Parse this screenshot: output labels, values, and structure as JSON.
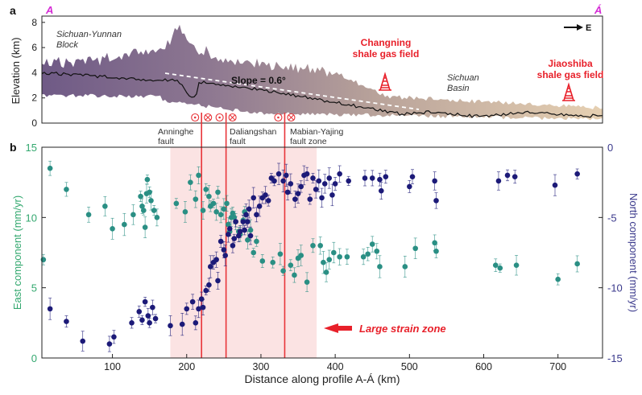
{
  "colors": {
    "east": "#2a8f84",
    "north": "#1c1a78",
    "fault": "#e8353a",
    "strain_zone": "#fbe3e3",
    "profile_letter": "#d52bd5",
    "gas_field": "#e8202a",
    "axis_east": "#33a86f",
    "axis_north": "#3b3a8c"
  },
  "panel_a": {
    "label": "a",
    "left_letter": "A",
    "right_letter": "Á",
    "direction": "E",
    "ylabel": "Elevation (km)",
    "yticks": [
      "0",
      "2",
      "4",
      "6",
      "8"
    ],
    "block_label_line1": "Sichuan-Yunnan",
    "block_label_line2": "Block",
    "basin_label_line1": "Sichuan",
    "basin_label_line2": "Basin",
    "slope_label": "Slope = 0.6°",
    "gas_field_1_line1": "Changning",
    "gas_field_1_line2": "shale gas field",
    "gas_field_2_line1": "Jiaoshiba",
    "gas_field_2_line2": "shale gas field"
  },
  "faults": [
    {
      "name_line1": "Anninghe",
      "name_line2": "fault",
      "distance_km": 220
    },
    {
      "name_line1": "Daliangshan",
      "name_line2": "fault",
      "distance_km": 253
    },
    {
      "name_line1": "Mabian-Yajing",
      "name_line2": "fault zone",
      "distance_km": 332
    }
  ],
  "chart_data": {
    "type": "scatter",
    "panel_label": "b",
    "xlabel": "Distance along profile A-Á (km)",
    "ylabel_left": "East component (mm/yr)",
    "ylabel_right": "North component (mm/yr)",
    "xlim": [
      5,
      760
    ],
    "xticks": [
      100,
      200,
      300,
      400,
      500,
      600,
      700
    ],
    "ylim_left": [
      0,
      15
    ],
    "yticks_left": [
      0,
      5,
      10,
      15
    ],
    "ylim_right": [
      -15,
      0
    ],
    "yticks_right": [
      -15,
      -10,
      -5,
      0
    ],
    "strain_zone_km": [
      178,
      375
    ],
    "strain_zone_label": "Large strain zone",
    "series": [
      {
        "name": "East component",
        "axis": "left",
        "points": [
          [
            7,
            7.0
          ],
          [
            16,
            13.5
          ],
          [
            38,
            12.0
          ],
          [
            68,
            10.2
          ],
          [
            90,
            10.8
          ],
          [
            100,
            9.2
          ],
          [
            116,
            9.5
          ],
          [
            128,
            10.2
          ],
          [
            138,
            11.5
          ],
          [
            140,
            10.8
          ],
          [
            142,
            10.5
          ],
          [
            144,
            9.3
          ],
          [
            146,
            11.7
          ],
          [
            147,
            12.7
          ],
          [
            150,
            11.8
          ],
          [
            152,
            11.2
          ],
          [
            156,
            10.5
          ],
          [
            160,
            10.0
          ],
          [
            186,
            11.0
          ],
          [
            198,
            10.4
          ],
          [
            205,
            12.5
          ],
          [
            212,
            11.3
          ],
          [
            216,
            13.0
          ],
          [
            222,
            10.5
          ],
          [
            226,
            12.0
          ],
          [
            230,
            11.5
          ],
          [
            232,
            10.8
          ],
          [
            236,
            11.0
          ],
          [
            240,
            10.4
          ],
          [
            242,
            11.8
          ],
          [
            246,
            10.2
          ],
          [
            250,
            10.6
          ],
          [
            254,
            11.0
          ],
          [
            256,
            9.5
          ],
          [
            258,
            9.0
          ],
          [
            260,
            10.0
          ],
          [
            262,
            10.3
          ],
          [
            264,
            10.0
          ],
          [
            266,
            9.7
          ],
          [
            270,
            9.0
          ],
          [
            272,
            8.8
          ],
          [
            276,
            9.8
          ],
          [
            278,
            10.4
          ],
          [
            282,
            8.4
          ],
          [
            286,
            9.1
          ],
          [
            290,
            7.5
          ],
          [
            294,
            8.3
          ],
          [
            302,
            6.9
          ],
          [
            316,
            6.8
          ],
          [
            326,
            7.4
          ],
          [
            330,
            6.2
          ],
          [
            340,
            6.6
          ],
          [
            345,
            5.9
          ],
          [
            350,
            7.1
          ],
          [
            354,
            7.3
          ],
          [
            362,
            5.4
          ],
          [
            370,
            8.0
          ],
          [
            380,
            8.0
          ],
          [
            384,
            6.8
          ],
          [
            388,
            6.1
          ],
          [
            392,
            7.0
          ],
          [
            398,
            7.5
          ],
          [
            406,
            7.2
          ],
          [
            416,
            7.2
          ],
          [
            438,
            7.2
          ],
          [
            444,
            7.4
          ],
          [
            450,
            8.1
          ],
          [
            456,
            7.6
          ],
          [
            460,
            6.5
          ],
          [
            494,
            6.5
          ],
          [
            508,
            7.8
          ],
          [
            534,
            8.2
          ],
          [
            536,
            7.6
          ],
          [
            616,
            6.6
          ],
          [
            622,
            6.4
          ],
          [
            644,
            6.6
          ],
          [
            700,
            5.6
          ],
          [
            726,
            6.7
          ]
        ]
      },
      {
        "name": "North component",
        "axis": "right",
        "points": [
          [
            16,
            -11.5
          ],
          [
            38,
            -12.4
          ],
          [
            60,
            -13.8
          ],
          [
            96,
            -14.0
          ],
          [
            102,
            -13.5
          ],
          [
            126,
            -12.5
          ],
          [
            136,
            -11.7
          ],
          [
            140,
            -12.3
          ],
          [
            144,
            -11.0
          ],
          [
            148,
            -12.0
          ],
          [
            150,
            -12.5
          ],
          [
            154,
            -11.4
          ],
          [
            158,
            -12.2
          ],
          [
            178,
            -12.7
          ],
          [
            194,
            -12.6
          ],
          [
            200,
            -11.5
          ],
          [
            208,
            -11.0
          ],
          [
            212,
            -12.5
          ],
          [
            216,
            -11.5
          ],
          [
            220,
            -10.8
          ],
          [
            222,
            -11.4
          ],
          [
            226,
            -10.2
          ],
          [
            230,
            -9.8
          ],
          [
            232,
            -8.5
          ],
          [
            236,
            -8.2
          ],
          [
            240,
            -8.0
          ],
          [
            242,
            -9.5
          ],
          [
            246,
            -6.7
          ],
          [
            250,
            -7.3
          ],
          [
            252,
            -7.7
          ],
          [
            256,
            -6.2
          ],
          [
            258,
            -5.8
          ],
          [
            262,
            -7.0
          ],
          [
            264,
            -6.5
          ],
          [
            266,
            -5.3
          ],
          [
            270,
            -6.3
          ],
          [
            272,
            -6.0
          ],
          [
            276,
            -5.3
          ],
          [
            278,
            -5.9
          ],
          [
            280,
            -4.8
          ],
          [
            282,
            -5.3
          ],
          [
            284,
            -4.4
          ],
          [
            286,
            -6.3
          ],
          [
            290,
            -3.6
          ],
          [
            294,
            -4.8
          ],
          [
            298,
            -4.2
          ],
          [
            302,
            -3.6
          ],
          [
            306,
            -3.4
          ],
          [
            310,
            -3.8
          ],
          [
            314,
            -2.2
          ],
          [
            318,
            -2.4
          ],
          [
            324,
            -1.9
          ],
          [
            330,
            -2.4
          ],
          [
            334,
            -2.0
          ],
          [
            336,
            -3.2
          ],
          [
            340,
            -2.6
          ],
          [
            346,
            -3.7
          ],
          [
            350,
            -3.3
          ],
          [
            354,
            -2.8
          ],
          [
            358,
            -2.0
          ],
          [
            362,
            -1.9
          ],
          [
            366,
            -3.7
          ],
          [
            370,
            -2.2
          ],
          [
            374,
            -3.0
          ],
          [
            378,
            -2.4
          ],
          [
            382,
            -3.6
          ],
          [
            386,
            -2.6
          ],
          [
            392,
            -2.2
          ],
          [
            396,
            -3.4
          ],
          [
            400,
            -2.6
          ],
          [
            406,
            -1.9
          ],
          [
            418,
            -2.4
          ],
          [
            440,
            -2.2
          ],
          [
            450,
            -2.2
          ],
          [
            460,
            -2.3
          ],
          [
            462,
            -3.1
          ],
          [
            468,
            -2.1
          ],
          [
            500,
            -2.8
          ],
          [
            504,
            -2.1
          ],
          [
            534,
            -2.4
          ],
          [
            536,
            -3.8
          ],
          [
            620,
            -2.4
          ],
          [
            632,
            -2.0
          ],
          [
            642,
            -2.1
          ],
          [
            696,
            -2.7
          ],
          [
            726,
            -1.9
          ]
        ]
      }
    ]
  }
}
